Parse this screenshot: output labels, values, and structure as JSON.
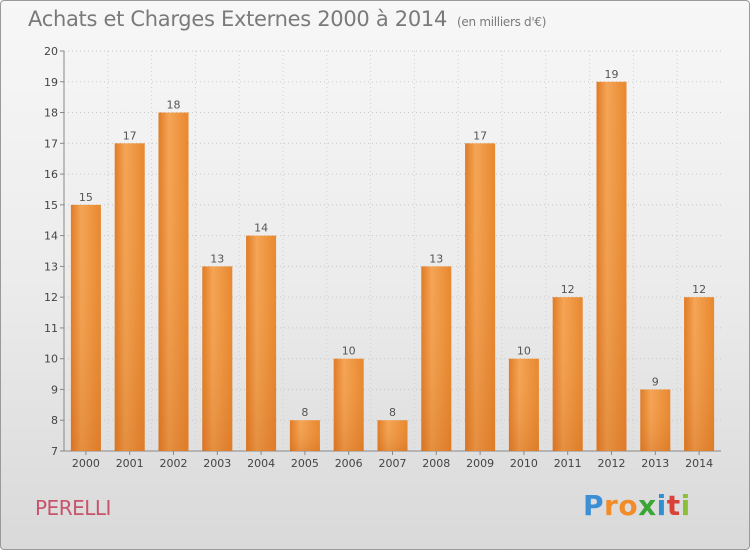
{
  "chart_data": {
    "type": "bar",
    "title": "Achats et Charges Externes 2000 à 2014",
    "subtitle": "(en milliers d'€)",
    "categories": [
      "2000",
      "2001",
      "2002",
      "2003",
      "2004",
      "2005",
      "2006",
      "2007",
      "2008",
      "2009",
      "2010",
      "2011",
      "2012",
      "2013",
      "2014"
    ],
    "values": [
      15,
      17,
      18,
      13,
      14,
      8,
      10,
      8,
      13,
      17,
      10,
      12,
      19,
      9,
      12
    ],
    "ylim": [
      7,
      20
    ],
    "yticks": [
      7,
      8,
      9,
      10,
      11,
      12,
      13,
      14,
      15,
      16,
      17,
      18,
      19,
      20
    ],
    "xlabel": "",
    "ylabel": "",
    "grid": true,
    "bar_color": "#f0923a"
  },
  "footer": {
    "city": "PERELLI",
    "logo_letters": [
      "P",
      "r",
      "o",
      "x",
      "i",
      "t",
      "i"
    ],
    "logo_colors": [
      "#3b8fd6",
      "#f28c28",
      "#f28c28",
      "#3ba635",
      "#2f8fd0",
      "#d9413b",
      "#8bbf3a"
    ]
  }
}
